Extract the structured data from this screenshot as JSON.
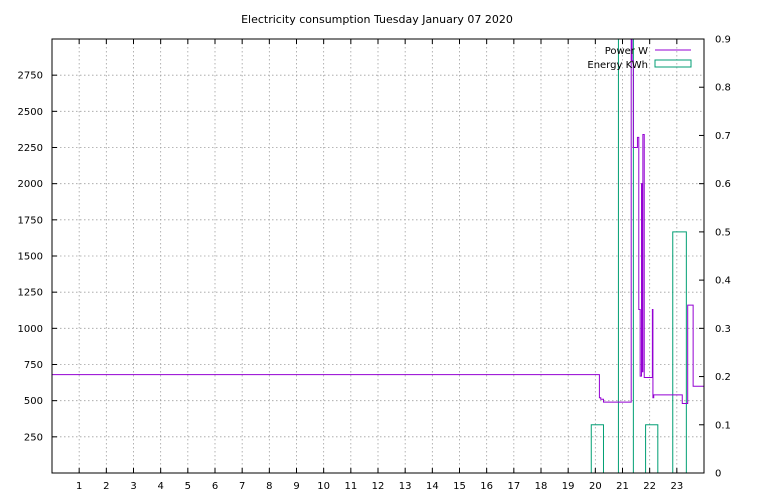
{
  "chart_data": {
    "type": "line",
    "title": "Electricity consumption Tuesday January 07 2020",
    "x_ticks": [
      1,
      2,
      3,
      4,
      5,
      6,
      7,
      8,
      9,
      10,
      11,
      12,
      13,
      14,
      15,
      16,
      17,
      18,
      19,
      20,
      21,
      22,
      23
    ],
    "xlim": [
      0,
      24
    ],
    "y_left_ticks": [
      250,
      500,
      750,
      1000,
      1250,
      1500,
      1750,
      2000,
      2250,
      2500,
      2750
    ],
    "ylim_left": [
      0,
      3000
    ],
    "y_right_ticks": [
      0,
      0.1,
      0.2,
      0.3,
      0.4,
      0.5,
      0.6,
      0.7,
      0.8,
      0.9
    ],
    "ylim_right": [
      0,
      0.9
    ],
    "grid": true,
    "legend_position": "top-right",
    "colors": {
      "power": "#9400d3",
      "energy": "#009e73",
      "grid": "#a0a0a0",
      "axis": "#000000"
    },
    "series": [
      {
        "name": "Power W",
        "axis": "left",
        "style": "step-line",
        "x": [
          0,
          20.15,
          20.2,
          20.3,
          20.4,
          21.0,
          21.3,
          21.32,
          21.35,
          21.4,
          21.5,
          21.55,
          21.6,
          21.65,
          21.7,
          21.72,
          21.75,
          21.8,
          21.85,
          21.9,
          22.0,
          22.1,
          22.12,
          22.15,
          22.2,
          22.4,
          22.6,
          22.8,
          22.95,
          23.0,
          23.2,
          23.3,
          23.35,
          23.4,
          23.6,
          23.8,
          23.85,
          24.0
        ],
        "y": [
          680,
          520,
          510,
          490,
          490,
          490,
          490,
          3000,
          2850,
          2250,
          2250,
          2320,
          1130,
          670,
          2000,
          700,
          2340,
          660,
          660,
          660,
          660,
          1130,
          520,
          540,
          540,
          540,
          540,
          540,
          540,
          540,
          480,
          480,
          480,
          1160,
          600,
          600,
          600,
          650
        ]
      },
      {
        "name": "Energy KWh",
        "axis": "right",
        "style": "histogram",
        "bars": [
          {
            "x0": 19.85,
            "x1": 20.3,
            "value": 0.1
          },
          {
            "x0": 20.85,
            "x1": 21.4,
            "value": 0.9
          },
          {
            "x0": 21.85,
            "x1": 22.3,
            "value": 0.1
          },
          {
            "x0": 22.85,
            "x1": 23.35,
            "value": 0.5
          }
        ]
      }
    ]
  }
}
